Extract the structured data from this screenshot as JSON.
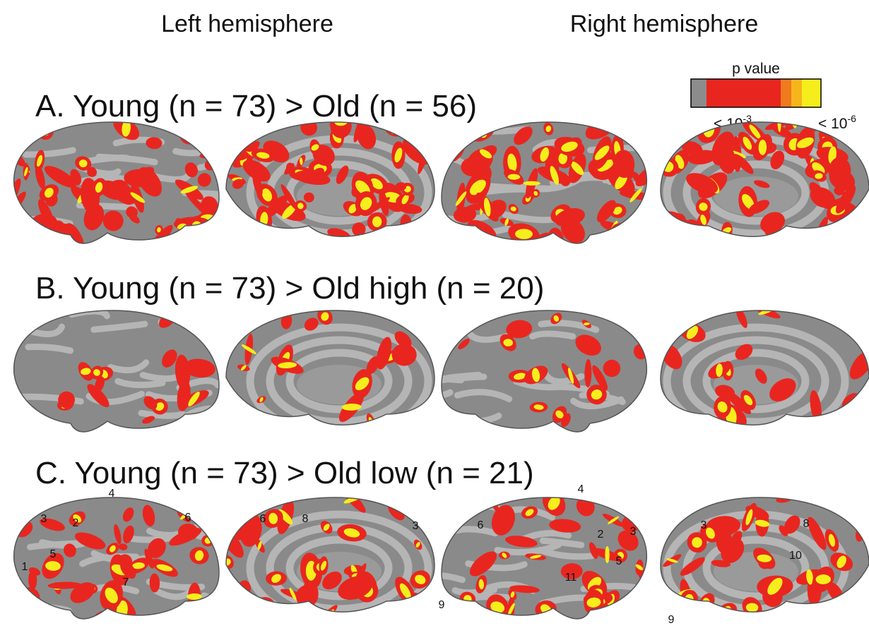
{
  "headers": [
    "Left hemisphere",
    "Right hemisphere"
  ],
  "legend": {
    "title": "p value",
    "labels": [
      {
        "base": "< 10",
        "exponent": "-3"
      },
      {
        "base": "< 10",
        "exponent": "-6"
      }
    ]
  },
  "rows": [
    {
      "label": "A. Young (n = 73) > Old (n = 56)"
    },
    {
      "label": "B. Young (n = 73) > Old high (n = 20)"
    },
    {
      "label": "C. Young (n = 73) > Old low (n = 21)",
      "annotations": [
        [
          "4",
          "3",
          "2",
          "6",
          "5",
          "1",
          "7"
        ],
        [
          "6",
          "8",
          "3",
          "9"
        ],
        [
          "4",
          "6",
          "2",
          "3",
          "5",
          "11"
        ],
        [
          "3",
          "8",
          "10",
          "9"
        ]
      ]
    }
  ]
}
